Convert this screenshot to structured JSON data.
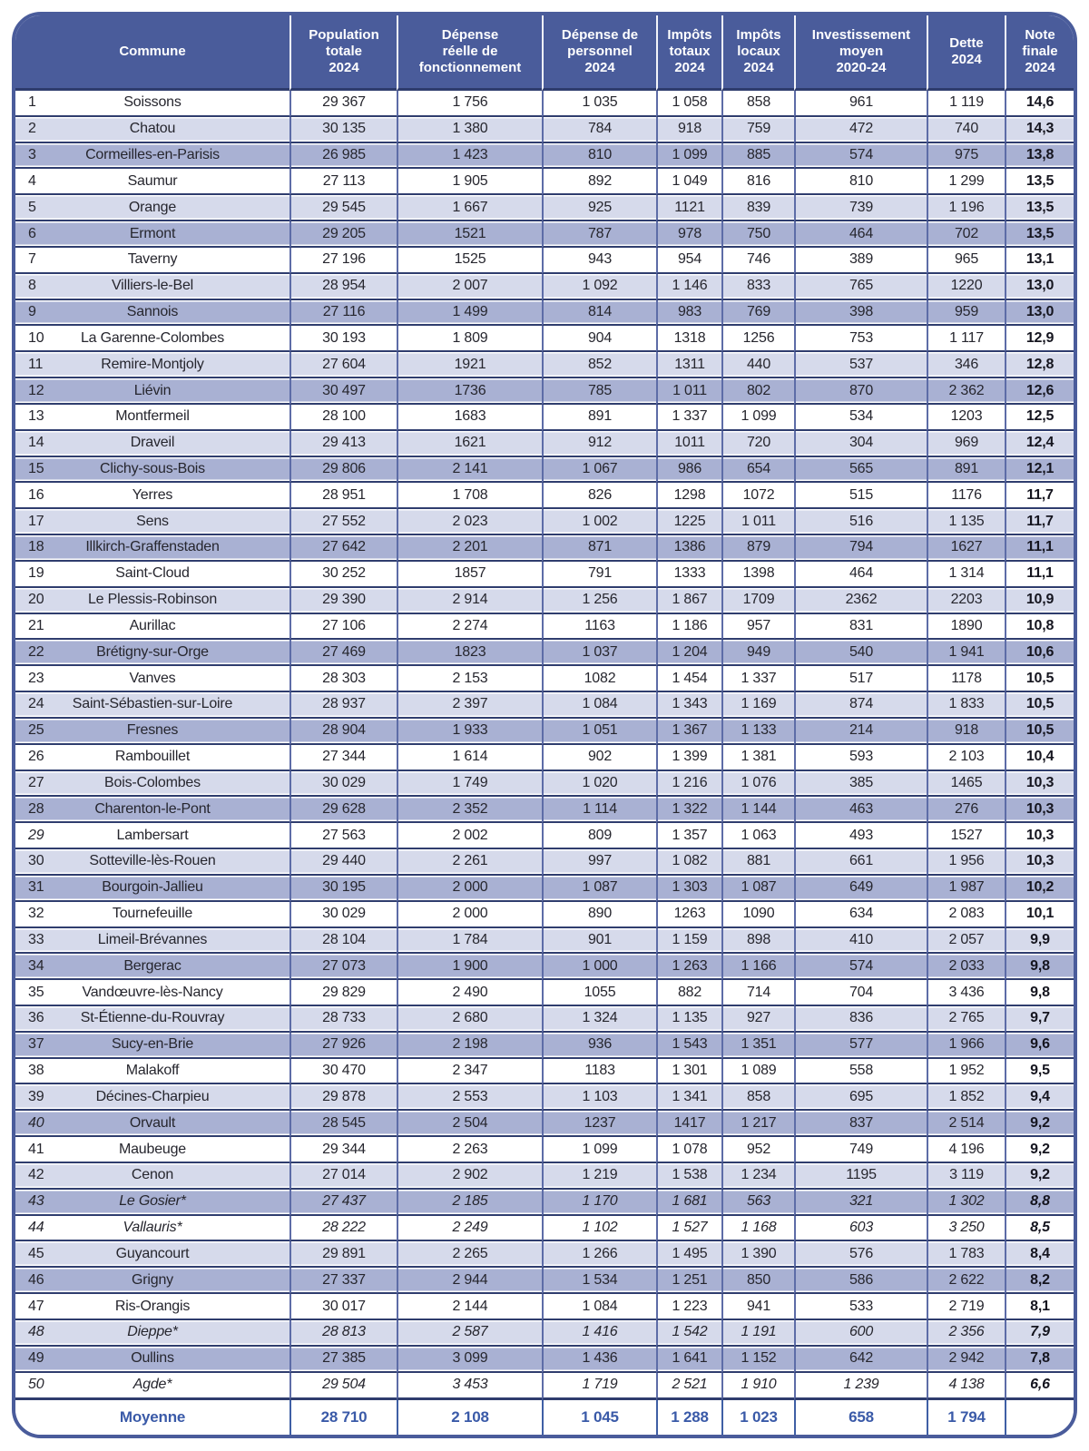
{
  "table": {
    "headers": [
      "Commune",
      "Population\ntotale\n2024",
      "Dépense\nréelle de\nfonctionnement",
      "Dépense de\npersonnel\n2024",
      "Impôts\ntotaux\n2024",
      "Impôts\nlocaux\n2024",
      "Investissement\nmoyen\n2020-24",
      "Dette\n2024",
      "Note\nfinale\n2024"
    ],
    "rows": [
      {
        "n": "1",
        "c": "Soissons",
        "v": [
          "29 367",
          "1 756",
          "1 035",
          "1 058",
          "858",
          "961",
          "1 119"
        ],
        "note": "14,6",
        "tint": "w",
        "style": ""
      },
      {
        "n": "2",
        "c": "Chatou",
        "v": [
          "30 135",
          "1 380",
          "784",
          "918",
          "759",
          "472",
          "740"
        ],
        "note": "14,3",
        "tint": "l",
        "style": ""
      },
      {
        "n": "3",
        "c": "Cormeilles-en-Parisis",
        "v": [
          "26 985",
          "1 423",
          "810",
          "1 099",
          "885",
          "574",
          "975"
        ],
        "note": "13,8",
        "tint": "m",
        "style": ""
      },
      {
        "n": "4",
        "c": "Saumur",
        "v": [
          "27 113",
          "1 905",
          "892",
          "1 049",
          "816",
          "810",
          "1 299"
        ],
        "note": "13,5",
        "tint": "w",
        "style": ""
      },
      {
        "n": "5",
        "c": "Orange",
        "v": [
          "29 545",
          "1 667",
          "925",
          "1121",
          "839",
          "739",
          "1 196"
        ],
        "note": "13,5",
        "tint": "l",
        "style": ""
      },
      {
        "n": "6",
        "c": "Ermont",
        "v": [
          "29 205",
          "1521",
          "787",
          "978",
          "750",
          "464",
          "702"
        ],
        "note": "13,5",
        "tint": "m",
        "style": ""
      },
      {
        "n": "7",
        "c": "Taverny",
        "v": [
          "27 196",
          "1525",
          "943",
          "954",
          "746",
          "389",
          "965"
        ],
        "note": "13,1",
        "tint": "w",
        "style": ""
      },
      {
        "n": "8",
        "c": "Villiers-le-Bel",
        "v": [
          "28 954",
          "2 007",
          "1 092",
          "1 146",
          "833",
          "765",
          "1220"
        ],
        "note": "13,0",
        "tint": "l",
        "style": ""
      },
      {
        "n": "9",
        "c": "Sannois",
        "v": [
          "27 116",
          "1 499",
          "814",
          "983",
          "769",
          "398",
          "959"
        ],
        "note": "13,0",
        "tint": "m",
        "style": ""
      },
      {
        "n": "10",
        "c": "La Garenne-Colombes",
        "v": [
          "30 193",
          "1 809",
          "904",
          "1318",
          "1256",
          "753",
          "1 117"
        ],
        "note": "12,9",
        "tint": "w",
        "style": ""
      },
      {
        "n": "11",
        "c": "Remire-Montjoly",
        "v": [
          "27 604",
          "1921",
          "852",
          "1311",
          "440",
          "537",
          "346"
        ],
        "note": "12,8",
        "tint": "l",
        "style": ""
      },
      {
        "n": "12",
        "c": "Liévin",
        "v": [
          "30 497",
          "1736",
          "785",
          "1 011",
          "802",
          "870",
          "2 362"
        ],
        "note": "12,6",
        "tint": "m",
        "style": ""
      },
      {
        "n": "13",
        "c": "Montfermeil",
        "v": [
          "28 100",
          "1683",
          "891",
          "1 337",
          "1 099",
          "534",
          "1203"
        ],
        "note": "12,5",
        "tint": "w",
        "style": ""
      },
      {
        "n": "14",
        "c": "Draveil",
        "v": [
          "29 413",
          "1621",
          "912",
          "1011",
          "720",
          "304",
          "969"
        ],
        "note": "12,4",
        "tint": "l",
        "style": ""
      },
      {
        "n": "15",
        "c": "Clichy-sous-Bois",
        "v": [
          "29 806",
          "2 141",
          "1 067",
          "986",
          "654",
          "565",
          "891"
        ],
        "note": "12,1",
        "tint": "m",
        "style": ""
      },
      {
        "n": "16",
        "c": "Yerres",
        "v": [
          "28 951",
          "1 708",
          "826",
          "1298",
          "1072",
          "515",
          "1176"
        ],
        "note": "11,7",
        "tint": "w",
        "style": ""
      },
      {
        "n": "17",
        "c": "Sens",
        "v": [
          "27 552",
          "2 023",
          "1 002",
          "1225",
          "1 011",
          "516",
          "1 135"
        ],
        "note": "11,7",
        "tint": "l",
        "style": ""
      },
      {
        "n": "18",
        "c": "Illkirch-Graffenstaden",
        "v": [
          "27 642",
          "2 201",
          "871",
          "1386",
          "879",
          "794",
          "1627"
        ],
        "note": "11,1",
        "tint": "m",
        "style": ""
      },
      {
        "n": "19",
        "c": "Saint-Cloud",
        "v": [
          "30 252",
          "1857",
          "791",
          "1333",
          "1398",
          "464",
          "1 314"
        ],
        "note": "11,1",
        "tint": "w",
        "style": ""
      },
      {
        "n": "20",
        "c": "Le Plessis-Robinson",
        "v": [
          "29 390",
          "2 914",
          "1 256",
          "1 867",
          "1709",
          "2362",
          "2203"
        ],
        "note": "10,9",
        "tint": "l",
        "style": ""
      },
      {
        "n": "21",
        "c": "Aurillac",
        "v": [
          "27 106",
          "2 274",
          "1163",
          "1 186",
          "957",
          "831",
          "1890"
        ],
        "note": "10,8",
        "tint": "w",
        "style": ""
      },
      {
        "n": "22",
        "c": "Brétigny-sur-Orge",
        "v": [
          "27 469",
          "1823",
          "1 037",
          "1 204",
          "949",
          "540",
          "1 941"
        ],
        "note": "10,6",
        "tint": "m",
        "style": ""
      },
      {
        "n": "23",
        "c": "Vanves",
        "v": [
          "28 303",
          "2 153",
          "1082",
          "1 454",
          "1 337",
          "517",
          "1178"
        ],
        "note": "10,5",
        "tint": "w",
        "style": ""
      },
      {
        "n": "24",
        "c": "Saint-Sébastien-sur-Loire",
        "v": [
          "28 937",
          "2 397",
          "1 084",
          "1 343",
          "1 169",
          "874",
          "1 833"
        ],
        "note": "10,5",
        "tint": "l",
        "style": ""
      },
      {
        "n": "25",
        "c": "Fresnes",
        "v": [
          "28 904",
          "1 933",
          "1 051",
          "1 367",
          "1 133",
          "214",
          "918"
        ],
        "note": "10,5",
        "tint": "m",
        "style": ""
      },
      {
        "n": "26",
        "c": "Rambouillet",
        "v": [
          "27 344",
          "1 614",
          "902",
          "1 399",
          "1 381",
          "593",
          "2 103"
        ],
        "note": "10,4",
        "tint": "w",
        "style": ""
      },
      {
        "n": "27",
        "c": "Bois-Colombes",
        "v": [
          "30 029",
          "1 749",
          "1 020",
          "1 216",
          "1 076",
          "385",
          "1465"
        ],
        "note": "10,3",
        "tint": "l",
        "style": ""
      },
      {
        "n": "28",
        "c": "Charenton-le-Pont",
        "v": [
          "29 628",
          "2 352",
          "1 114",
          "1 322",
          "1 144",
          "463",
          "276"
        ],
        "note": "10,3",
        "tint": "m",
        "style": ""
      },
      {
        "n": "29",
        "c": "Lambersart",
        "v": [
          "27 563",
          "2 002",
          "809",
          "1 357",
          "1 063",
          "493",
          "1527"
        ],
        "note": "10,3",
        "tint": "w",
        "style": "rank-italic"
      },
      {
        "n": "30",
        "c": "Sotteville-lès-Rouen",
        "v": [
          "29 440",
          "2 261",
          "997",
          "1 082",
          "881",
          "661",
          "1 956"
        ],
        "note": "10,3",
        "tint": "l",
        "style": ""
      },
      {
        "n": "31",
        "c": "Bourgoin-Jallieu",
        "v": [
          "30 195",
          "2 000",
          "1 087",
          "1 303",
          "1 087",
          "649",
          "1 987"
        ],
        "note": "10,2",
        "tint": "m",
        "style": ""
      },
      {
        "n": "32",
        "c": "Tournefeuille",
        "v": [
          "30 029",
          "2 000",
          "890",
          "1263",
          "1090",
          "634",
          "2 083"
        ],
        "note": "10,1",
        "tint": "w",
        "style": ""
      },
      {
        "n": "33",
        "c": "Limeil-Brévannes",
        "v": [
          "28 104",
          "1 784",
          "901",
          "1 159",
          "898",
          "410",
          "2 057"
        ],
        "note": "9,9",
        "tint": "l",
        "style": ""
      },
      {
        "n": "34",
        "c": "Bergerac",
        "v": [
          "27 073",
          "1 900",
          "1 000",
          "1 263",
          "1 166",
          "574",
          "2 033"
        ],
        "note": "9,8",
        "tint": "m",
        "style": ""
      },
      {
        "n": "35",
        "c": "Vandœuvre-lès-Nancy",
        "v": [
          "29 829",
          "2 490",
          "1055",
          "882",
          "714",
          "704",
          "3 436"
        ],
        "note": "9,8",
        "tint": "w",
        "style": ""
      },
      {
        "n": "36",
        "c": "St-Étienne-du-Rouvray",
        "v": [
          "28 733",
          "2 680",
          "1 324",
          "1 135",
          "927",
          "836",
          "2 765"
        ],
        "note": "9,7",
        "tint": "l",
        "style": ""
      },
      {
        "n": "37",
        "c": "Sucy-en-Brie",
        "v": [
          "27 926",
          "2 198",
          "936",
          "1 543",
          "1 351",
          "577",
          "1 966"
        ],
        "note": "9,6",
        "tint": "m",
        "style": ""
      },
      {
        "n": "38",
        "c": "Malakoff",
        "v": [
          "30 470",
          "2 347",
          "1183",
          "1 301",
          "1 089",
          "558",
          "1 952"
        ],
        "note": "9,5",
        "tint": "w",
        "style": ""
      },
      {
        "n": "39",
        "c": "Décines-Charpieu",
        "v": [
          "29 878",
          "2 553",
          "1 103",
          "1 341",
          "858",
          "695",
          "1 852"
        ],
        "note": "9,4",
        "tint": "l",
        "style": ""
      },
      {
        "n": "40",
        "c": "Orvault",
        "v": [
          "28 545",
          "2 504",
          "1237",
          "1417",
          "1 217",
          "837",
          "2 514"
        ],
        "note": "9,2",
        "tint": "m",
        "style": "rank-italic"
      },
      {
        "n": "41",
        "c": "Maubeuge",
        "v": [
          "29 344",
          "2 263",
          "1 099",
          "1 078",
          "952",
          "749",
          "4 196"
        ],
        "note": "9,2",
        "tint": "w",
        "style": ""
      },
      {
        "n": "42",
        "c": "Cenon",
        "v": [
          "27 014",
          "2 902",
          "1 219",
          "1 538",
          "1 234",
          "1195",
          "3 119"
        ],
        "note": "9,2",
        "tint": "l",
        "style": ""
      },
      {
        "n": "43",
        "c": "Le Gosier*",
        "v": [
          "27 437",
          "2 185",
          "1 170",
          "1 681",
          "563",
          "321",
          "1 302"
        ],
        "note": "8,8",
        "tint": "m",
        "style": "italic"
      },
      {
        "n": "44",
        "c": "Vallauris*",
        "v": [
          "28 222",
          "2 249",
          "1 102",
          "1 527",
          "1 168",
          "603",
          "3 250"
        ],
        "note": "8,5",
        "tint": "w",
        "style": "italic"
      },
      {
        "n": "45",
        "c": "Guyancourt",
        "v": [
          "29 891",
          "2 265",
          "1 266",
          "1 495",
          "1 390",
          "576",
          "1 783"
        ],
        "note": "8,4",
        "tint": "l",
        "style": ""
      },
      {
        "n": "46",
        "c": "Grigny",
        "v": [
          "27 337",
          "2 944",
          "1 534",
          "1 251",
          "850",
          "586",
          "2 622"
        ],
        "note": "8,2",
        "tint": "m",
        "style": ""
      },
      {
        "n": "47",
        "c": "Ris-Orangis",
        "v": [
          "30 017",
          "2 144",
          "1 084",
          "1 223",
          "941",
          "533",
          "2 719"
        ],
        "note": "8,1",
        "tint": "w",
        "style": ""
      },
      {
        "n": "48",
        "c": "Dieppe*",
        "v": [
          "28 813",
          "2 587",
          "1 416",
          "1 542",
          "1 191",
          "600",
          "2 356"
        ],
        "note": "7,9",
        "tint": "l",
        "style": "italic"
      },
      {
        "n": "49",
        "c": "Oullins",
        "v": [
          "27 385",
          "3 099",
          "1 436",
          "1 641",
          "1 152",
          "642",
          "2 942"
        ],
        "note": "7,8",
        "tint": "m",
        "style": ""
      },
      {
        "n": "50",
        "c": "Agde*",
        "v": [
          "29 504",
          "3 453",
          "1 719",
          "2 521",
          "1 910",
          "1 239",
          "4 138"
        ],
        "note": "6,6",
        "tint": "w",
        "style": "italic"
      }
    ],
    "footer": {
      "label": "Moyenne",
      "v": [
        "28 710",
        "2 108",
        "1 045",
        "1 288",
        "1 023",
        "658",
        "1 794"
      ],
      "note": ""
    }
  },
  "colors": {
    "frame_blue": "#4a5c9b",
    "row_light": "#d6daeb",
    "row_medium": "#a9b1d3",
    "grid_dark": "#2f3d6e",
    "grid_vertical": "#5d6ca7",
    "footer_text": "#3a5aa8"
  }
}
